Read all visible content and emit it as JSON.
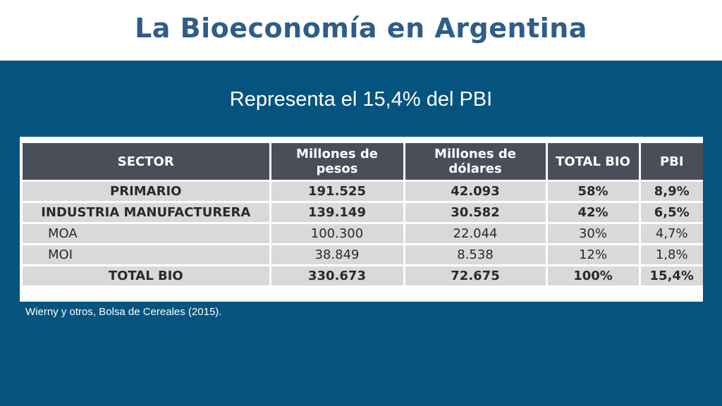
{
  "slide": {
    "title": "La Bioeconomía en Argentina",
    "subtitle": "Representa el 15,4% del PBI",
    "source": "Wierny y otros, Bolsa de Cereales (2015)."
  },
  "table": {
    "headers": [
      "SECTOR",
      "Millones de pesos",
      "Millones de dólares",
      "TOTAL BIO",
      "PBI"
    ],
    "rows": [
      [
        "PRIMARIO",
        "191.525",
        "42.093",
        "58%",
        "8,9%"
      ],
      [
        "INDUSTRIA MANUFACTURERA",
        "139.149",
        "30.582",
        "42%",
        "6,5%"
      ],
      [
        "MOA",
        "100.300",
        "22.044",
        "30%",
        "4,7%"
      ],
      [
        "MOI",
        "38.849",
        "8.538",
        "12%",
        "1,8%"
      ],
      [
        "TOTAL BIO",
        "330.673",
        "72.675",
        "100%",
        "15,4%"
      ]
    ]
  }
}
